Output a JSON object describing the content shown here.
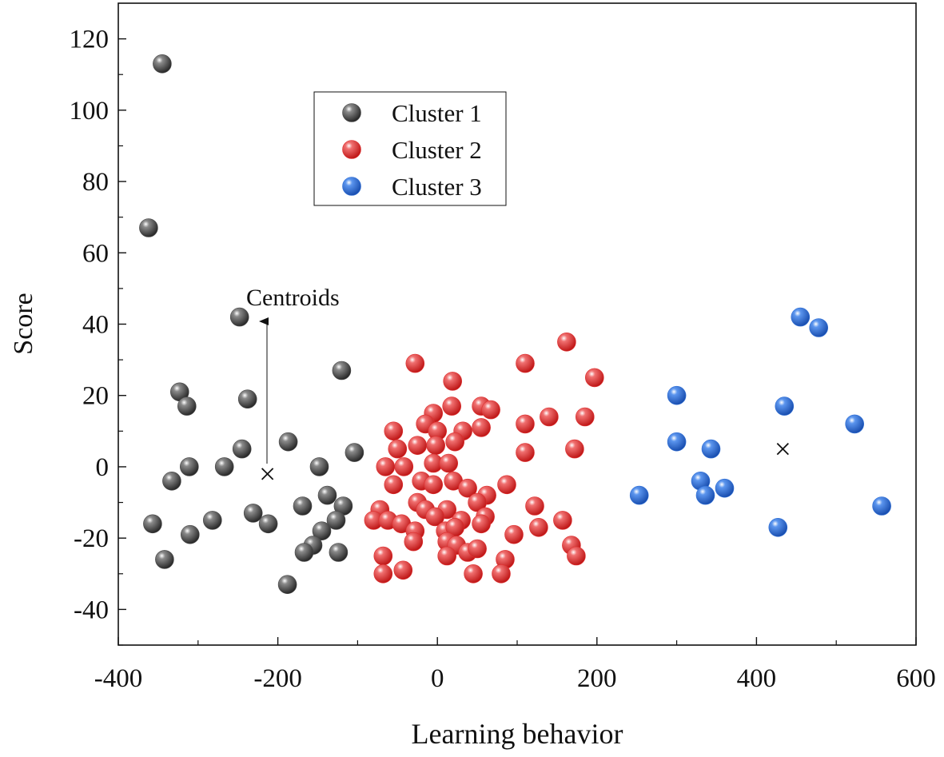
{
  "chart_data": {
    "type": "scatter",
    "title": "",
    "xlabel": "Learning behavior",
    "ylabel": "Score",
    "xlim": [
      -400,
      600
    ],
    "ylim": [
      -50,
      130
    ],
    "xticks": [
      "-400",
      "-200",
      "0",
      "200",
      "400",
      "600"
    ],
    "yticks": [
      "-40",
      "-20",
      "0",
      "20",
      "40",
      "60",
      "80",
      "100",
      "120"
    ],
    "grid": false,
    "legend_position": "upper-left",
    "annotation": "Centroids",
    "series": [
      {
        "name": "Cluster 1",
        "color": "#4a4a4a",
        "points": [
          [
            -345,
            113
          ],
          [
            -362,
            67
          ],
          [
            -248,
            42
          ],
          [
            -120,
            27
          ],
          [
            -323,
            21
          ],
          [
            -314,
            17
          ],
          [
            -238,
            19
          ],
          [
            -187,
            7
          ],
          [
            -245,
            5
          ],
          [
            -104,
            4
          ],
          [
            -333,
            -4
          ],
          [
            -311,
            0
          ],
          [
            -267,
            0
          ],
          [
            -148,
            0
          ],
          [
            -138,
            -8
          ],
          [
            -118,
            -11
          ],
          [
            -169,
            -11
          ],
          [
            -127,
            -15
          ],
          [
            -231,
            -13
          ],
          [
            -282,
            -15
          ],
          [
            -212,
            -16
          ],
          [
            -357,
            -16
          ],
          [
            -145,
            -18
          ],
          [
            -310,
            -19
          ],
          [
            -156,
            -22
          ],
          [
            -167,
            -24
          ],
          [
            -124,
            -24
          ],
          [
            -342,
            -26
          ],
          [
            -188,
            -33
          ]
        ]
      },
      {
        "name": "Cluster 2",
        "color": "#e03030",
        "points": [
          [
            162,
            35
          ],
          [
            -28,
            29
          ],
          [
            110,
            29
          ],
          [
            197,
            25
          ],
          [
            19,
            24
          ],
          [
            55,
            17
          ],
          [
            67,
            16
          ],
          [
            18,
            17
          ],
          [
            -5,
            15
          ],
          [
            -15,
            12
          ],
          [
            110,
            12
          ],
          [
            140,
            14
          ],
          [
            185,
            14
          ],
          [
            -55,
            10
          ],
          [
            0,
            10
          ],
          [
            32,
            10
          ],
          [
            55,
            11
          ],
          [
            -25,
            6
          ],
          [
            -2,
            6
          ],
          [
            22,
            7
          ],
          [
            -50,
            5
          ],
          [
            172,
            5
          ],
          [
            110,
            4
          ],
          [
            -65,
            0
          ],
          [
            -42,
            0
          ],
          [
            -5,
            1
          ],
          [
            14,
            1
          ],
          [
            -55,
            -5
          ],
          [
            -20,
            -4
          ],
          [
            -5,
            -5
          ],
          [
            20,
            -4
          ],
          [
            38,
            -6
          ],
          [
            87,
            -5
          ],
          [
            62,
            -8
          ],
          [
            50,
            -10
          ],
          [
            -25,
            -10
          ],
          [
            -72,
            -12
          ],
          [
            -15,
            -12
          ],
          [
            12,
            -12
          ],
          [
            -3,
            -14
          ],
          [
            30,
            -15
          ],
          [
            60,
            -14
          ],
          [
            122,
            -11
          ],
          [
            -80,
            -15
          ],
          [
            -62,
            -15
          ],
          [
            -45,
            -16
          ],
          [
            55,
            -16
          ],
          [
            -28,
            -18
          ],
          [
            10,
            -18
          ],
          [
            22,
            -17
          ],
          [
            127,
            -17
          ],
          [
            157,
            -15
          ],
          [
            96,
            -19
          ],
          [
            -30,
            -21
          ],
          [
            12,
            -21
          ],
          [
            24,
            -22
          ],
          [
            38,
            -24
          ],
          [
            50,
            -23
          ],
          [
            -68,
            -25
          ],
          [
            12,
            -25
          ],
          [
            85,
            -26
          ],
          [
            168,
            -22
          ],
          [
            174,
            -25
          ],
          [
            -68,
            -30
          ],
          [
            -43,
            -29
          ],
          [
            45,
            -30
          ],
          [
            80,
            -30
          ]
        ]
      },
      {
        "name": "Cluster 3",
        "color": "#2f6fd6",
        "points": [
          [
            455,
            42
          ],
          [
            478,
            39
          ],
          [
            300,
            20
          ],
          [
            435,
            17
          ],
          [
            523,
            12
          ],
          [
            300,
            7
          ],
          [
            343,
            5
          ],
          [
            330,
            -4
          ],
          [
            360,
            -6
          ],
          [
            336,
            -8
          ],
          [
            253,
            -8
          ],
          [
            557,
            -11
          ],
          [
            427,
            -17
          ]
        ]
      }
    ],
    "centroids": [
      [
        -213,
        -2
      ],
      [
        433,
        5
      ]
    ]
  }
}
